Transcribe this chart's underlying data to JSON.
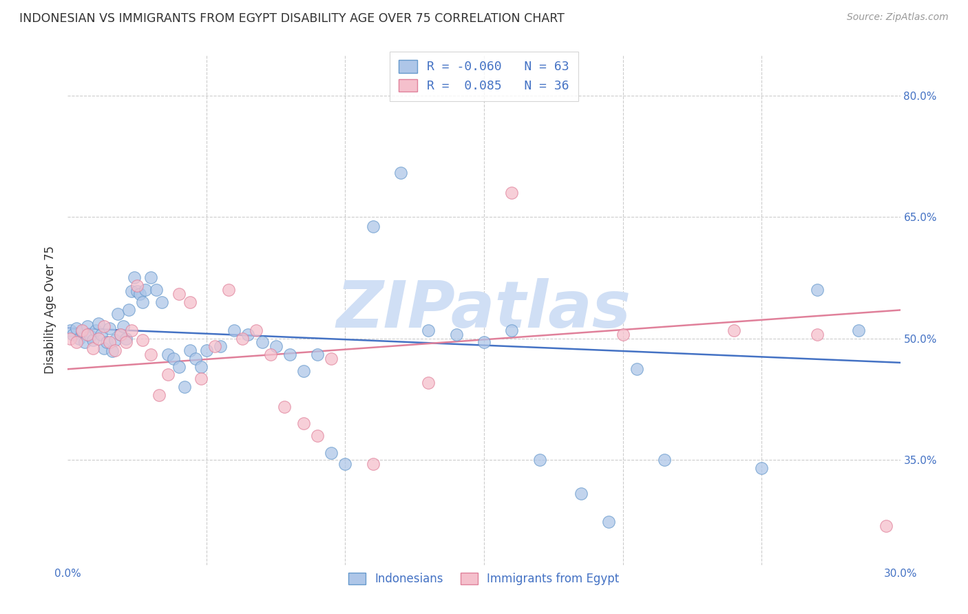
{
  "title": "INDONESIAN VS IMMIGRANTS FROM EGYPT DISABILITY AGE OVER 75 CORRELATION CHART",
  "source": "Source: ZipAtlas.com",
  "ylabel": "Disability Age Over 75",
  "xlim": [
    0.0,
    0.3
  ],
  "ylim": [
    0.22,
    0.85
  ],
  "background_color": "#ffffff",
  "grid_color": "#cccccc",
  "title_color": "#333333",
  "axis_color": "#4472c4",
  "watermark": "ZIPatlas",
  "watermark_color": "#d0dff5",
  "series": [
    {
      "name": "Indonesians",
      "color": "#aec6e8",
      "edge_color": "#6699cc",
      "R": -0.06,
      "N": 63,
      "trend_color": "#4472c4",
      "trend_style": "solid",
      "trend_x0": 0.0,
      "trend_y0": 0.513,
      "trend_x1": 0.3,
      "trend_y1": 0.47,
      "x": [
        0.001,
        0.002,
        0.003,
        0.004,
        0.005,
        0.006,
        0.007,
        0.008,
        0.009,
        0.01,
        0.011,
        0.012,
        0.013,
        0.014,
        0.015,
        0.016,
        0.017,
        0.018,
        0.019,
        0.02,
        0.021,
        0.022,
        0.023,
        0.024,
        0.025,
        0.026,
        0.027,
        0.028,
        0.03,
        0.032,
        0.034,
        0.036,
        0.038,
        0.04,
        0.042,
        0.044,
        0.046,
        0.048,
        0.05,
        0.055,
        0.06,
        0.065,
        0.07,
        0.075,
        0.08,
        0.085,
        0.09,
        0.095,
        0.1,
        0.11,
        0.12,
        0.13,
        0.14,
        0.15,
        0.16,
        0.17,
        0.185,
        0.195,
        0.205,
        0.215,
        0.25,
        0.27,
        0.285
      ],
      "y": [
        0.51,
        0.505,
        0.512,
        0.5,
        0.508,
        0.495,
        0.515,
        0.503,
        0.498,
        0.51,
        0.518,
        0.505,
        0.488,
        0.495,
        0.512,
        0.484,
        0.498,
        0.53,
        0.505,
        0.515,
        0.5,
        0.535,
        0.558,
        0.575,
        0.558,
        0.555,
        0.545,
        0.56,
        0.575,
        0.56,
        0.545,
        0.48,
        0.475,
        0.465,
        0.44,
        0.485,
        0.475,
        0.465,
        0.485,
        0.49,
        0.51,
        0.505,
        0.495,
        0.49,
        0.48,
        0.46,
        0.48,
        0.358,
        0.345,
        0.638,
        0.705,
        0.51,
        0.505,
        0.495,
        0.51,
        0.35,
        0.308,
        0.273,
        0.462,
        0.35,
        0.34,
        0.56,
        0.51
      ]
    },
    {
      "name": "Immigrants from Egypt",
      "color": "#f5c0cc",
      "edge_color": "#e0809a",
      "R": 0.085,
      "N": 36,
      "trend_color": "#e0809a",
      "trend_style": "solid",
      "trend_x0": 0.0,
      "trend_y0": 0.462,
      "trend_x1": 0.3,
      "trend_y1": 0.535,
      "x": [
        0.001,
        0.003,
        0.005,
        0.007,
        0.009,
        0.011,
        0.013,
        0.015,
        0.017,
        0.019,
        0.021,
        0.023,
        0.025,
        0.027,
        0.03,
        0.033,
        0.036,
        0.04,
        0.044,
        0.048,
        0.053,
        0.058,
        0.063,
        0.068,
        0.073,
        0.078,
        0.085,
        0.09,
        0.095,
        0.11,
        0.13,
        0.16,
        0.2,
        0.24,
        0.27,
        0.295
      ],
      "y": [
        0.5,
        0.495,
        0.51,
        0.505,
        0.488,
        0.5,
        0.515,
        0.495,
        0.485,
        0.505,
        0.495,
        0.51,
        0.565,
        0.498,
        0.48,
        0.43,
        0.455,
        0.555,
        0.545,
        0.45,
        0.49,
        0.56,
        0.5,
        0.51,
        0.48,
        0.415,
        0.395,
        0.38,
        0.475,
        0.345,
        0.445,
        0.68,
        0.505,
        0.51,
        0.505,
        0.268
      ]
    }
  ]
}
